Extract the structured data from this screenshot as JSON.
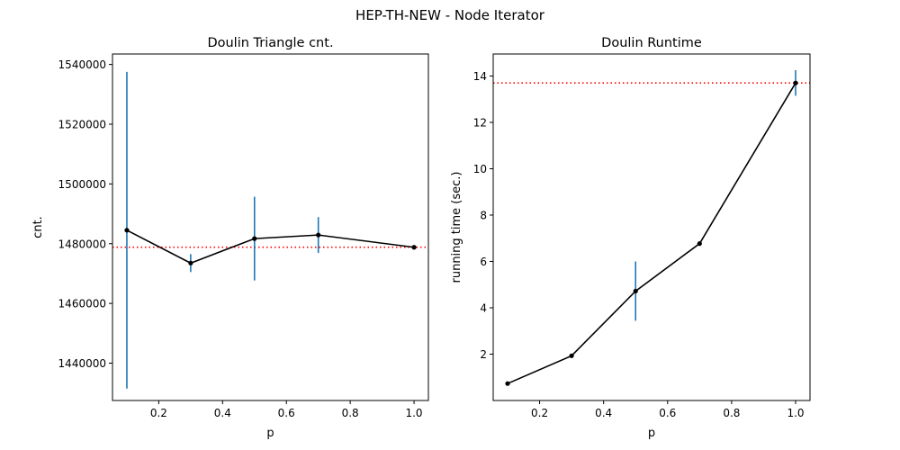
{
  "figure": {
    "suptitle": "HEP-TH-NEW - Node Iterator"
  },
  "chart_data": [
    {
      "type": "line",
      "title": "Doulin Triangle cnt.",
      "xlabel": "p",
      "ylabel": "cnt.",
      "x": [
        0.1,
        0.3,
        0.5,
        0.7,
        1.0
      ],
      "y": [
        1484500,
        1473500,
        1481700,
        1482900,
        1478800
      ],
      "yerr": [
        53000,
        3000,
        14000,
        6000,
        0
      ],
      "reference_line": 1478800,
      "xlim": [
        0.055,
        1.045
      ],
      "ylim": [
        1427500,
        1543500
      ],
      "xticks": [
        0.2,
        0.4,
        0.6,
        0.8,
        1.0
      ],
      "xtick_labels": [
        "0.2",
        "0.4",
        "0.6",
        "0.8",
        "1.0"
      ],
      "yticks": [
        1440000,
        1460000,
        1480000,
        1500000,
        1520000,
        1540000
      ],
      "ytick_labels": [
        "1440000",
        "1460000",
        "1480000",
        "1500000",
        "1520000",
        "1540000"
      ],
      "line_color": "#000000",
      "errorbar_color": "#1f77b4",
      "reference_color": "#ff0000"
    },
    {
      "type": "line",
      "title": "Doulin Runtime",
      "xlabel": "p",
      "ylabel": "running time (sec.)",
      "x": [
        0.1,
        0.3,
        0.5,
        0.7,
        1.0
      ],
      "y": [
        0.73,
        1.93,
        4.72,
        6.77,
        13.7
      ],
      "yerr": [
        0,
        0,
        1.28,
        0,
        0.55
      ],
      "reference_line": 13.7,
      "xlim": [
        0.055,
        1.045
      ],
      "ylim": [
        0.0,
        14.95
      ],
      "xticks": [
        0.2,
        0.4,
        0.6,
        0.8,
        1.0
      ],
      "xtick_labels": [
        "0.2",
        "0.4",
        "0.6",
        "0.8",
        "1.0"
      ],
      "yticks": [
        2,
        4,
        6,
        8,
        10,
        12,
        14
      ],
      "ytick_labels": [
        "2",
        "4",
        "6",
        "8",
        "10",
        "12",
        "14"
      ],
      "line_color": "#000000",
      "errorbar_color": "#1f77b4",
      "reference_color": "#ff0000"
    }
  ]
}
